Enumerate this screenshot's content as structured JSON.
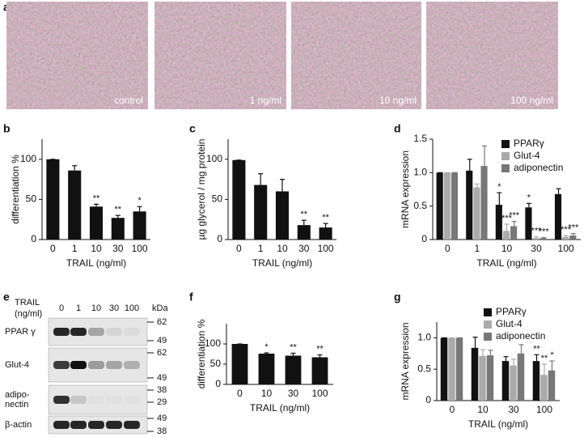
{
  "micrographs": {
    "label": "a",
    "captions": [
      "control",
      "1 ng/ml",
      "10 ng/ml",
      "100 ng/ml"
    ]
  },
  "blot": {
    "label": "e",
    "treatment_label": [
      "TRAIL",
      "(ng/ml)"
    ],
    "lanes": [
      "0",
      "1",
      "10",
      "30",
      "100"
    ],
    "unit": "kDa",
    "rows": [
      {
        "name": [
          "PPAR γ"
        ],
        "markers": [
          62,
          49
        ]
      },
      {
        "name": [
          "Glut-4"
        ],
        "markers": [
          62,
          49
        ]
      },
      {
        "name": [
          "adipo-",
          "nectin"
        ],
        "markers": [
          38,
          29
        ]
      },
      {
        "name": [
          "β-actin"
        ],
        "markers": [
          49,
          38
        ]
      }
    ]
  },
  "chart_data": [
    {
      "type": "bar",
      "label": "b",
      "ylabel": "differentiation %",
      "xlabel": "TRAIL (ng/ml)",
      "categories": [
        "0",
        "1",
        "10",
        "30",
        "100"
      ],
      "values": [
        100,
        86,
        41,
        27,
        35
      ],
      "errors": [
        0,
        6,
        3,
        3,
        6
      ],
      "significance": [
        null,
        null,
        "**",
        "**",
        "*"
      ],
      "color": "#111111",
      "ylim": [
        0,
        125
      ],
      "yticks": [
        0,
        50,
        100
      ]
    },
    {
      "type": "bar",
      "label": "c",
      "ylabel": "µg glycerol / mg protein",
      "xlabel": "TRAIL (ng/ml)",
      "categories": [
        "0",
        "1",
        "10",
        "30",
        "100"
      ],
      "values": [
        99,
        68,
        60,
        18,
        15
      ],
      "errors": [
        0,
        14,
        15,
        6,
        5
      ],
      "significance": [
        null,
        null,
        null,
        "**",
        "**"
      ],
      "color": "#111111",
      "ylim": [
        0,
        125
      ],
      "yticks": [
        0,
        50,
        100
      ]
    },
    {
      "type": "bar",
      "label": "d",
      "ylabel": "mRNA expression",
      "xlabel": "TRAIL (ng/ml)",
      "categories": [
        "0",
        "1",
        "10",
        "30",
        "100"
      ],
      "series": [
        {
          "name": "PPARγ",
          "color": "#111111",
          "values": [
            1.0,
            1.03,
            0.52,
            0.48,
            0.68
          ],
          "errors": [
            0,
            0.17,
            0.18,
            0.06,
            0.08
          ],
          "significance": [
            null,
            null,
            "*",
            "*",
            null
          ]
        },
        {
          "name": "Glut-4",
          "color": "#aaaaaa",
          "values": [
            1.0,
            0.78,
            0.13,
            0.02,
            0.04
          ],
          "errors": [
            0,
            0.05,
            0.1,
            0.02,
            0.02
          ],
          "significance": [
            null,
            null,
            "***",
            "***",
            "***"
          ]
        },
        {
          "name": "adiponectin",
          "color": "#777777",
          "values": [
            1.0,
            1.1,
            0.2,
            0.02,
            0.06
          ],
          "errors": [
            0,
            0.3,
            0.07,
            0.01,
            0.03
          ],
          "significance": [
            null,
            null,
            "***",
            "***",
            "***"
          ]
        }
      ],
      "ylim": [
        0,
        1.5
      ],
      "yticks": [
        0,
        0.5,
        {
          "value": 1,
          "label": "1.0"
        },
        1.5
      ]
    },
    {
      "type": "bar",
      "label": "f",
      "ylabel": "differentiation %",
      "xlabel": "TRAIL (ng/ml)",
      "categories": [
        "0",
        "10",
        "30",
        "100"
      ],
      "values": [
        100,
        76,
        71,
        67
      ],
      "errors": [
        0,
        2,
        6,
        6
      ],
      "significance": [
        null,
        "*",
        "**",
        "**"
      ],
      "color": "#111111",
      "ylim": [
        0,
        150
      ],
      "yticks": [
        0,
        50,
        100
      ]
    },
    {
      "type": "bar",
      "label": "g",
      "ylabel": "mRNA expression",
      "xlabel": "TRAIL (ng/ml)",
      "categories": [
        "0",
        "10",
        "30",
        "100"
      ],
      "series": [
        {
          "name": "PPARγ",
          "color": "#111111",
          "values": [
            1.0,
            0.84,
            0.63,
            0.63
          ],
          "errors": [
            0,
            0.17,
            0.07,
            0.1
          ],
          "significance": [
            null,
            null,
            null,
            "**"
          ]
        },
        {
          "name": "Glut-4",
          "color": "#aaaaaa",
          "values": [
            1.0,
            0.71,
            0.56,
            0.41
          ],
          "errors": [
            0,
            0.1,
            0.1,
            0.17
          ],
          "significance": [
            null,
            null,
            null,
            "**"
          ]
        },
        {
          "name": "adiponectin",
          "color": "#777777",
          "values": [
            1.0,
            0.72,
            0.75,
            0.48
          ],
          "errors": [
            0,
            0.08,
            0.14,
            0.15
          ],
          "significance": [
            null,
            null,
            null,
            "*"
          ]
        }
      ],
      "ylim": [
        0,
        1.25
      ],
      "yticks": [
        0,
        0.5,
        {
          "value": 1,
          "label": "1.0"
        }
      ]
    }
  ]
}
